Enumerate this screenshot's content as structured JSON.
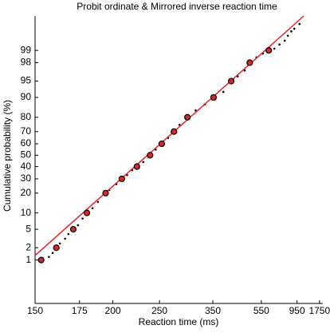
{
  "chart_data": {
    "type": "scatter",
    "title": "Probit ordinate & Mirrored inverse reaction time",
    "xlabel": "Reaction time (ms)",
    "ylabel": "Cumulative probability (%)",
    "xscale": "mirrored-inverse",
    "yscale": "probit",
    "xlim": [
      150,
      2000
    ],
    "ylim": [
      0.05,
      99.9
    ],
    "xticks": [
      150,
      175,
      200,
      250,
      350,
      550,
      950,
      1750
    ],
    "yticks": [
      1,
      2,
      5,
      10,
      20,
      30,
      40,
      50,
      60,
      70,
      80,
      90,
      95,
      98,
      99
    ],
    "series": [
      {
        "style": "dot",
        "color": "#000000",
        "x": [
          157,
          159,
          163,
          166,
          168,
          174,
          177,
          184,
          188,
          197,
          203,
          213,
          218,
          230,
          245,
          262,
          280,
          310,
          330,
          380,
          430,
          460,
          520,
          560,
          650,
          700,
          760,
          800,
          850,
          900,
          1000
        ],
        "values": [
          1.2,
          1.5,
          2.5,
          3.2,
          4,
          6,
          8,
          12,
          15,
          22,
          26,
          33,
          37,
          44,
          55,
          65,
          75,
          84,
          87,
          92,
          96,
          97,
          98.5,
          98.8,
          99.1,
          99.3,
          99.45,
          99.6,
          99.7,
          99.75,
          99.82
        ]
      },
      {
        "style": "line",
        "color": "#e8202a",
        "x": [
          150,
          1100
        ],
        "values": [
          1.3,
          99.9
        ]
      },
      {
        "style": "circle",
        "color": "#d42a2a",
        "x": [
          153,
          161,
          171,
          180,
          194,
          208,
          223,
          238,
          253,
          271,
          294,
          352,
          406,
          484,
          603
        ],
        "values": [
          1,
          2,
          5,
          10,
          20,
          30,
          40,
          50,
          60,
          70,
          80,
          90,
          95,
          98,
          99
        ]
      }
    ]
  }
}
